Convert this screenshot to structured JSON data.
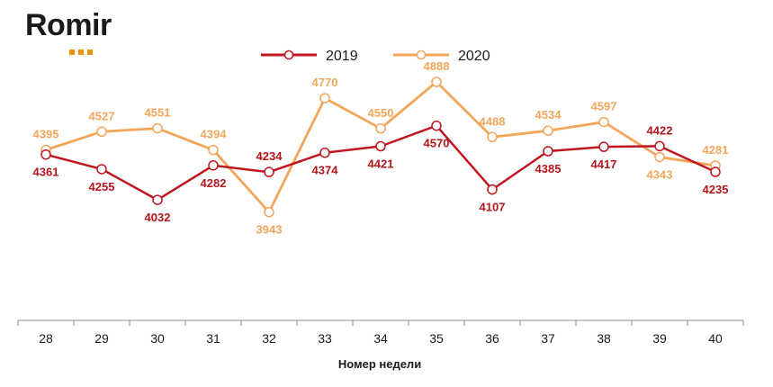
{
  "logo": {
    "text": "Romir",
    "accent_color": "#f39200"
  },
  "chart_data": {
    "type": "line",
    "categories": [
      "28",
      "29",
      "30",
      "31",
      "32",
      "33",
      "34",
      "35",
      "36",
      "37",
      "38",
      "39",
      "40"
    ],
    "xlabel": "Номер недели",
    "ylabel": "",
    "ylim": [
      3500,
      5000
    ],
    "grid": false,
    "legend_position": "top-center",
    "series": [
      {
        "name": "2019",
        "color": "#c0161f",
        "values": [
          4361,
          4255,
          4032,
          4282,
          4234,
          4374,
          4421,
          4570,
          4107,
          4385,
          4417,
          4422,
          4235
        ],
        "label_pos": [
          "below",
          "below",
          "below",
          "below",
          "above",
          "below",
          "below",
          "below",
          "below",
          "below",
          "below",
          "above",
          "below"
        ]
      },
      {
        "name": "2020",
        "color": "#f2a65a",
        "values": [
          4395,
          4527,
          4551,
          4394,
          3943,
          4770,
          4550,
          4888,
          4488,
          4534,
          4597,
          4343,
          4281
        ],
        "label_pos": [
          "above",
          "above",
          "above",
          "above",
          "below",
          "above",
          "above",
          "above",
          "above",
          "above",
          "above",
          "below",
          "above"
        ]
      }
    ]
  }
}
